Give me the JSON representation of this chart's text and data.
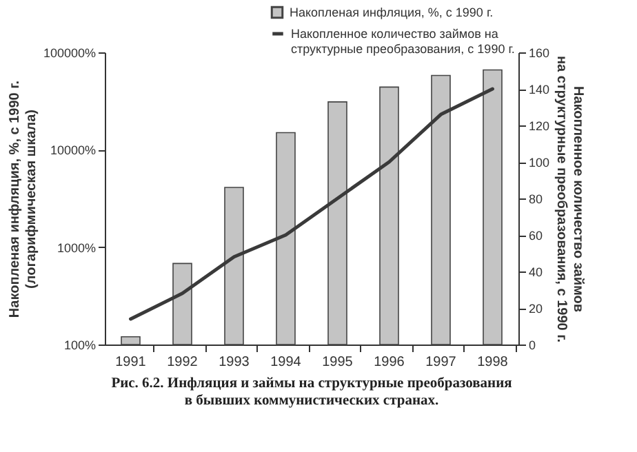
{
  "chart_data": {
    "type": "bar",
    "categories": [
      "1991",
      "1992",
      "1993",
      "1994",
      "1995",
      "1996",
      "1997",
      "1998"
    ],
    "series": [
      {
        "name": "Накопленая инфляция, %, с 1990 г.",
        "color": "#c4c4c4",
        "values": [
          120,
          680,
          4100,
          15000,
          31000,
          44000,
          58000,
          66000
        ]
      },
      {
        "type": "line",
        "name": "Накопленное количество займов на структурные преобразования, с 1990 г.",
        "color": "#3a3a3a",
        "axis": "y2",
        "values": [
          14,
          28,
          48,
          60,
          80,
          100,
          126,
          140
        ]
      }
    ],
    "log": "y",
    "ylim": [
      100,
      100000
    ],
    "yticks": [
      {
        "value": 100,
        "label": "100%"
      },
      {
        "value": 1000,
        "label": "1000%"
      },
      {
        "value": 10000,
        "label": "10000%"
      },
      {
        "value": 100000,
        "label": "100000%"
      }
    ],
    "y2lim": [
      0,
      160
    ],
    "y2ticks": [
      0,
      20,
      40,
      60,
      80,
      100,
      120,
      140,
      160
    ],
    "ylabel": "Накопленая инфляция, %, с 1990 г.\n(логарифмическая шкала)",
    "y2label": "Накопленное количество займов\nна структурные преобразования, с 1990 г.",
    "legend": "top right",
    "annotations": [
      "Рис. 6.2. Инфляция и займы на структурные преобразования\nв бывших коммунистических странах."
    ]
  }
}
